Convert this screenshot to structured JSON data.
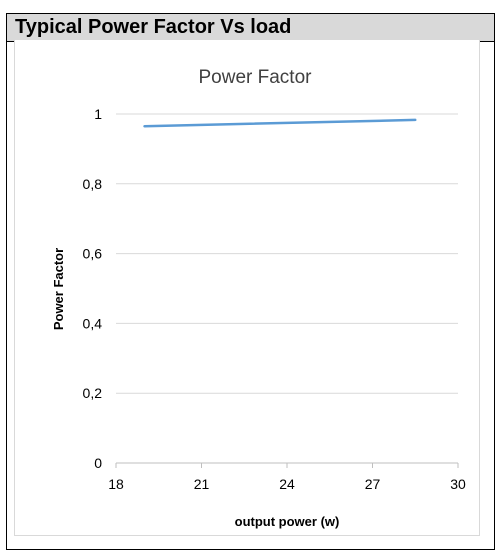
{
  "header": {
    "title": "Typical Power Factor Vs load"
  },
  "chart_data": {
    "type": "line",
    "title": "Power Factor",
    "xlabel": "output power (w)",
    "ylabel": "Power Factor",
    "xlim": [
      18,
      30
    ],
    "ylim": [
      0,
      1
    ],
    "x_ticks": [
      "18",
      "21",
      "24",
      "27",
      "30"
    ],
    "y_ticks": [
      "0",
      "0,2",
      "0,4",
      "0,6",
      "0,8",
      "1"
    ],
    "grid": true,
    "legend": false,
    "series": [
      {
        "color": "#5b9bd5",
        "x": [
          19,
          28.5
        ],
        "y": [
          0.965,
          0.983
        ]
      }
    ]
  }
}
